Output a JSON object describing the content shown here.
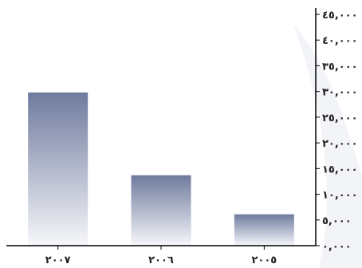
{
  "chart_data": {
    "type": "bar",
    "categories": [
      "٢٠٠٧",
      "٢٠٠٦",
      "٢٠٠٥"
    ],
    "values": [
      29800,
      13700,
      6100
    ],
    "ylim": [
      0,
      45000
    ],
    "yticks": [
      {
        "value": 0,
        "label": "٠,٠٠٠"
      },
      {
        "value": 5000,
        "label": "٥,٠٠٠"
      },
      {
        "value": 10000,
        "label": "١٠,٠٠٠"
      },
      {
        "value": 15000,
        "label": "١٥,٠٠٠"
      },
      {
        "value": 20000,
        "label": "٢٠,٠٠٠"
      },
      {
        "value": 25000,
        "label": "٢٥,٠٠٠"
      },
      {
        "value": 30000,
        "label": "٣٠,٠٠٠"
      },
      {
        "value": 35000,
        "label": "٣٥,٠٠٠"
      },
      {
        "value": 40000,
        "label": "٤٠,٠٠٠"
      },
      {
        "value": 45000,
        "label": "٤٥,٠٠٠"
      }
    ],
    "y_axis_side": "right",
    "grid": false,
    "colors": {
      "bar_top": "#6f7a9e",
      "bar_bottom": "#f6f7fa",
      "axis": "#000000"
    }
  }
}
